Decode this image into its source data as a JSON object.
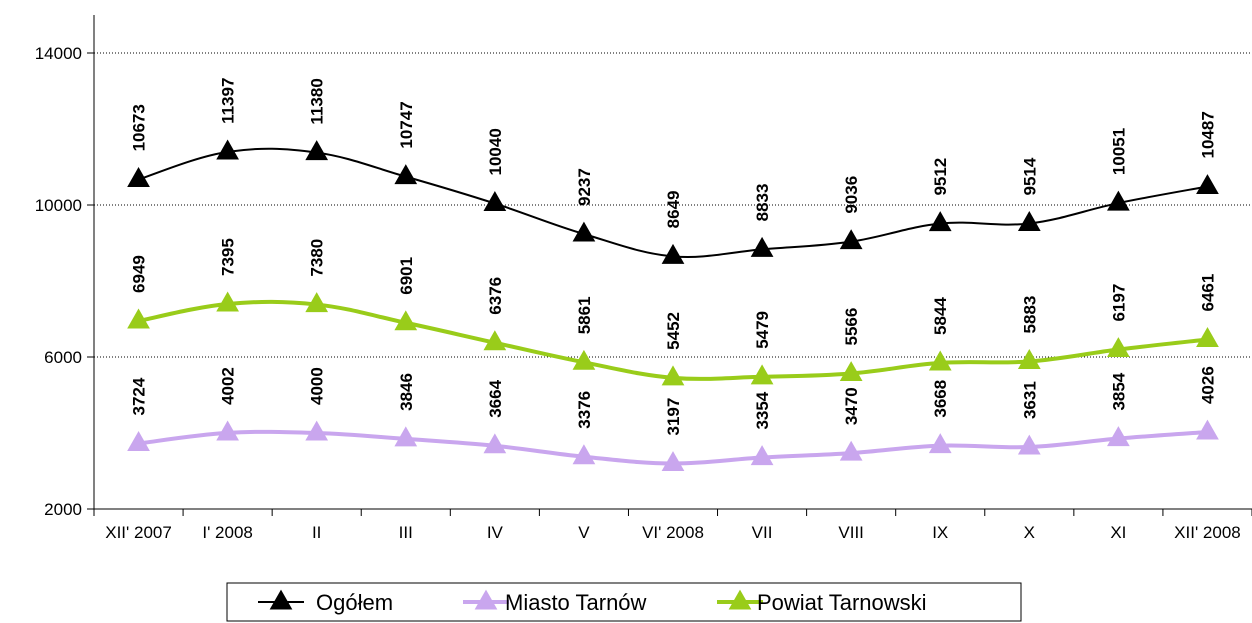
{
  "chart_data": {
    "type": "line",
    "title": "",
    "xlabel": "",
    "ylabel": "",
    "categories": [
      "XII' 2007",
      "I' 2008",
      "II",
      "III",
      "IV",
      "V",
      "VI' 2008",
      "VII",
      "VIII",
      "IX",
      "X",
      "XI",
      "XII' 2008"
    ],
    "ylim": [
      2000,
      15000
    ],
    "yticks": [
      2000,
      6000,
      10000,
      14000
    ],
    "grid": "horizontal dotted",
    "legend_position": "bottom",
    "data_labels": true,
    "series": [
      {
        "name": "Ogółem",
        "color": "#000000",
        "marker": "triangle",
        "values": [
          10673,
          11397,
          11380,
          10747,
          10040,
          9237,
          8649,
          8833,
          9036,
          9512,
          9514,
          10051,
          10487
        ]
      },
      {
        "name": "Miasto Tarnów",
        "color": "#c9a6ee",
        "marker": "triangle",
        "values": [
          3724,
          4002,
          4000,
          3846,
          3664,
          3376,
          3197,
          3354,
          3470,
          3668,
          3631,
          3854,
          4026
        ]
      },
      {
        "name": "Powiat Tarnowski",
        "color": "#99cc1a",
        "marker": "triangle",
        "values": [
          6949,
          7395,
          7380,
          6901,
          6376,
          5861,
          5452,
          5479,
          5566,
          5844,
          5883,
          6197,
          6461
        ]
      }
    ]
  }
}
